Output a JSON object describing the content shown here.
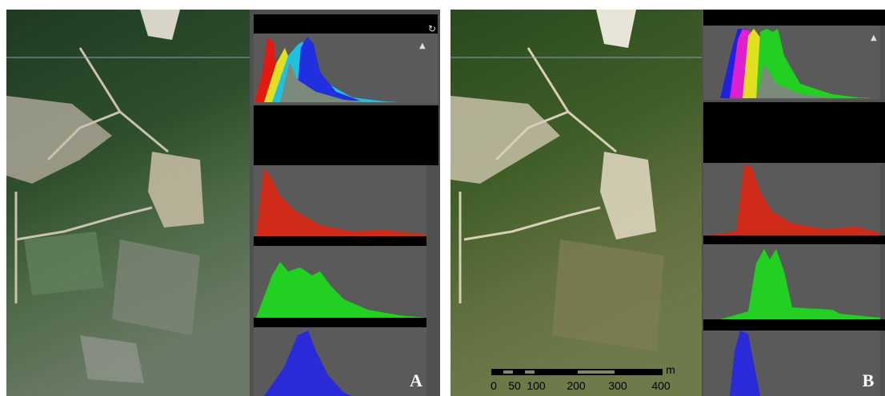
{
  "panels": [
    {
      "label": "A"
    },
    {
      "label": "B",
      "scale_bar": {
        "unit": "m",
        "ticks": [
          "0",
          "50",
          "100",
          "200",
          "300",
          "400"
        ]
      }
    }
  ]
}
